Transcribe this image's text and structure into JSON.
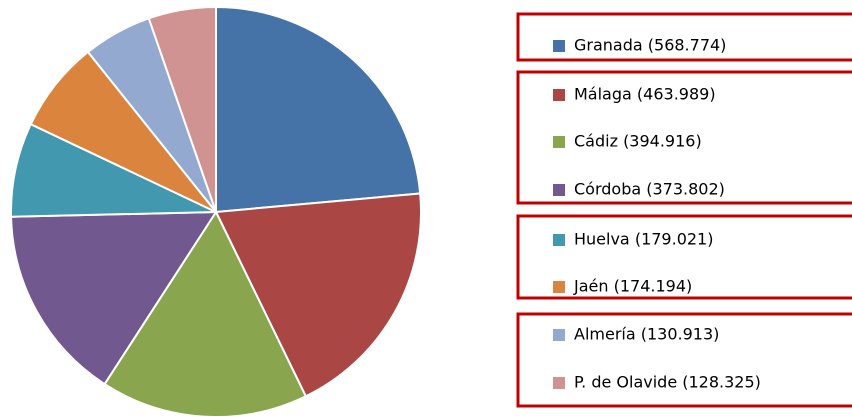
{
  "chart_data": {
    "type": "pie",
    "categories": [
      "Granada (568.774)",
      "Málaga (463.989)",
      "Cádiz (394.916)",
      "Córdoba (373.802)",
      "Huelva (179.021)",
      "Jaén (174.194)",
      "Almería (130.913)",
      "P. de Olavide (128.325)"
    ],
    "values": [
      568774,
      463989,
      394916,
      373802,
      179021,
      174194,
      130913,
      128325
    ],
    "colors": [
      "#4572a7",
      "#aa4643",
      "#89a54e",
      "#71588f",
      "#4198af",
      "#db843d",
      "#93a9cf",
      "#d19392"
    ],
    "legend": "right"
  }
}
